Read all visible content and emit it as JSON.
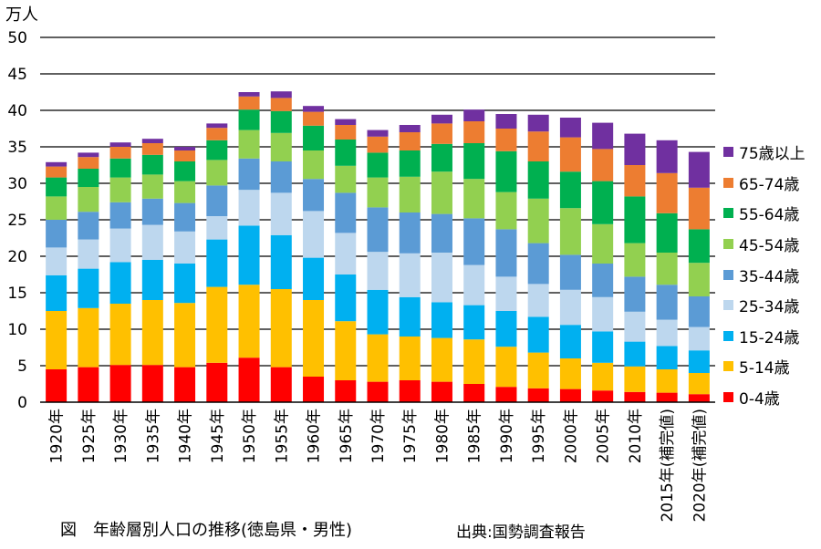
{
  "unit_label": "万人",
  "caption": "図　年齢層別人口の推移(徳島県・男性)",
  "source": "出典:国勢調査報告",
  "chart_data": {
    "type": "bar",
    "stacked": true,
    "categories": [
      "1920年",
      "1925年",
      "1930年",
      "1935年",
      "1940年",
      "1945年",
      "1950年",
      "1955年",
      "1960年",
      "1965年",
      "1970年",
      "1975年",
      "1980年",
      "1985年",
      "1990年",
      "1995年",
      "2000年",
      "2005年",
      "2010年",
      "2015年(補完値)",
      "2020年(補完値)"
    ],
    "ylim": [
      0,
      50
    ],
    "yticks": [
      0,
      5,
      10,
      15,
      20,
      25,
      30,
      35,
      40,
      45,
      50
    ],
    "grid": true,
    "legend_position": "right",
    "series": [
      {
        "name": "0-4歳",
        "color": "#ff0000",
        "values": [
          4.5,
          4.8,
          5.1,
          5.1,
          4.8,
          5.4,
          6.1,
          4.8,
          3.5,
          3.0,
          2.8,
          3.0,
          2.8,
          2.5,
          2.1,
          1.9,
          1.8,
          1.6,
          1.4,
          1.3,
          1.1
        ]
      },
      {
        "name": "5-14歳",
        "color": "#ffc000",
        "values": [
          8.0,
          8.1,
          8.4,
          8.9,
          8.8,
          10.4,
          10.0,
          10.7,
          10.5,
          8.1,
          6.5,
          6.0,
          6.0,
          6.1,
          5.5,
          4.9,
          4.2,
          3.8,
          3.5,
          3.2,
          2.9
        ]
      },
      {
        "name": "15-24歳",
        "color": "#00b0f0",
        "values": [
          4.9,
          5.4,
          5.7,
          5.5,
          5.4,
          6.5,
          8.1,
          7.4,
          5.8,
          6.4,
          6.1,
          5.4,
          4.9,
          4.7,
          4.9,
          4.9,
          4.6,
          4.3,
          3.4,
          3.2,
          3.1
        ]
      },
      {
        "name": "25-34歳",
        "color": "#bdd7ee",
        "values": [
          3.8,
          4.0,
          4.6,
          4.8,
          4.4,
          3.2,
          4.9,
          5.8,
          6.4,
          5.7,
          5.2,
          6.0,
          6.8,
          5.5,
          4.7,
          4.5,
          4.8,
          4.7,
          4.1,
          3.6,
          3.2
        ]
      },
      {
        "name": "35-44歳",
        "color": "#5b9bd5",
        "values": [
          3.8,
          3.8,
          3.6,
          3.6,
          3.9,
          4.2,
          4.3,
          4.3,
          4.4,
          5.5,
          6.1,
          5.6,
          5.3,
          6.4,
          6.5,
          5.6,
          4.8,
          4.6,
          4.8,
          4.8,
          4.2
        ]
      },
      {
        "name": "45-54歳",
        "color": "#92d050",
        "values": [
          3.2,
          3.4,
          3.4,
          3.3,
          3.0,
          3.5,
          3.9,
          3.9,
          3.9,
          3.7,
          4.1,
          4.9,
          5.8,
          5.4,
          5.1,
          6.1,
          6.4,
          5.4,
          4.6,
          4.4,
          4.6
        ]
      },
      {
        "name": "55-64歳",
        "color": "#00b050",
        "values": [
          2.6,
          2.5,
          2.6,
          2.7,
          2.7,
          2.7,
          2.8,
          3.0,
          3.4,
          3.6,
          3.4,
          3.6,
          3.8,
          4.9,
          5.6,
          5.1,
          5.0,
          5.9,
          6.4,
          5.4,
          4.6
        ]
      },
      {
        "name": "65-74歳",
        "color": "#ed7d31",
        "values": [
          1.5,
          1.6,
          1.6,
          1.6,
          1.5,
          1.7,
          1.8,
          1.8,
          1.9,
          2.0,
          2.2,
          2.5,
          2.8,
          3.0,
          3.1,
          4.1,
          4.7,
          4.4,
          4.3,
          5.5,
          5.7
        ]
      },
      {
        "name": "75歳以上",
        "color": "#7030a0",
        "values": [
          0.6,
          0.6,
          0.6,
          0.6,
          0.5,
          0.6,
          0.6,
          0.9,
          0.8,
          0.8,
          0.9,
          1.0,
          1.2,
          1.6,
          2.0,
          2.3,
          2.7,
          3.6,
          4.3,
          4.5,
          4.9
        ]
      }
    ]
  }
}
